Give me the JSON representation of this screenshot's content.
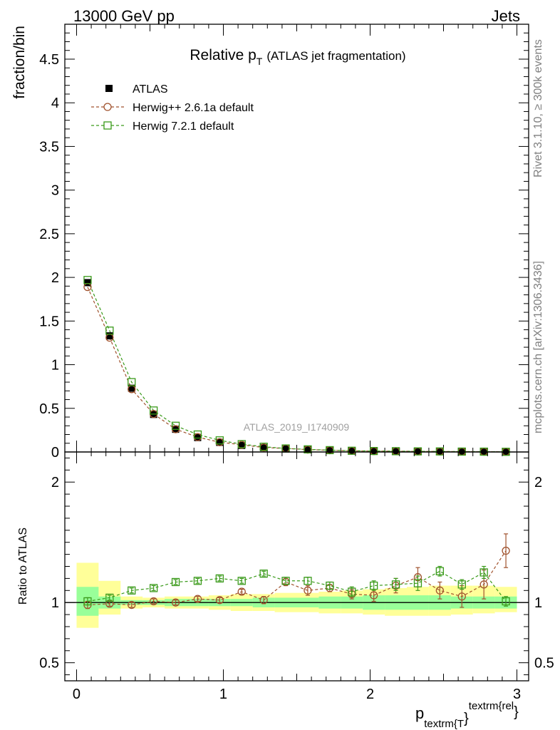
{
  "header": {
    "left": "13000 GeV pp",
    "right": "Jets"
  },
  "side_labels": {
    "rivet": "Rivet 3.1.10, ≥ 300k events",
    "mcplots": "mcplots.cern.ch [arXiv:1306.3436]"
  },
  "colors": {
    "atlas": "#000000",
    "herwig_old": "#a0522d",
    "herwig_new": "#3a9a1a",
    "band_outer": "#ffff99",
    "band_inner": "#99ff99"
  },
  "chart_data": {
    "type": "scatter",
    "title": "Relative p",
    "title_sub": "T",
    "title_suffix": "(ATLAS jet fragmentation)",
    "analysis": "ATLAS_2019_I1740909",
    "ylabel": "fraction/bin",
    "ratio_ylabel": "Ratio to ATLAS",
    "xlabel": {
      "main": "p",
      "sub": "textrm{T",
      "close": "}",
      "sup": "textrm{rel",
      "sup_close": "}"
    },
    "xlim": [
      -0.08,
      3.08
    ],
    "ylim": [
      0,
      4.9
    ],
    "ratio_ylim": [
      0.35,
      2.25
    ],
    "x_ticks": [
      0,
      1,
      2,
      3
    ],
    "x_tick_labels": [
      "0",
      "1",
      "2",
      "3"
    ],
    "y_ticks": [
      0,
      0.5,
      1,
      1.5,
      2,
      2.5,
      3,
      3.5,
      4,
      4.5
    ],
    "y_tick_labels": [
      "0",
      "0.5",
      "1",
      "1.5",
      "2",
      "2.5",
      "3",
      "3.5",
      "4",
      "4.5"
    ],
    "ratio_y_ticks": [
      0.5,
      1,
      2
    ],
    "ratio_y_tick_labels": [
      "0.5",
      "1",
      "2"
    ],
    "bin_edges": [
      0,
      0.15,
      0.3,
      0.45,
      0.6,
      0.75,
      0.9,
      1.05,
      1.2,
      1.35,
      1.5,
      1.65,
      1.8,
      1.95,
      2.1,
      2.25,
      2.4,
      2.55,
      2.7,
      2.85,
      3.0
    ],
    "x": [
      0.075,
      0.225,
      0.375,
      0.525,
      0.675,
      0.825,
      0.975,
      1.125,
      1.275,
      1.425,
      1.575,
      1.725,
      1.875,
      2.025,
      2.175,
      2.325,
      2.475,
      2.625,
      2.775,
      2.925
    ],
    "series": [
      {
        "name": "ATLAS",
        "marker": "filled-square",
        "values": [
          1.94,
          1.33,
          0.73,
          0.43,
          0.26,
          0.165,
          0.11,
          0.075,
          0.05,
          0.035,
          0.025,
          0.018,
          0.013,
          0.01,
          0.008,
          0.006,
          0.005,
          0.004,
          0.003,
          0.002
        ]
      },
      {
        "name": "Herwig++ 2.6.1a default",
        "marker": "open-circle",
        "values": [
          1.89,
          1.31,
          0.72,
          0.435,
          0.261,
          0.17,
          0.112,
          0.082,
          0.051,
          0.041,
          0.027,
          0.02,
          0.013,
          0.01,
          0.009,
          0.0073,
          0.0055,
          0.0042,
          0.0035,
          0.0029
        ],
        "ratio": [
          0.98,
          0.99,
          0.98,
          1.01,
          1.0,
          1.03,
          1.02,
          1.09,
          1.02,
          1.17,
          1.1,
          1.12,
          1.07,
          1.06,
          1.14,
          1.21,
          1.1,
          1.05,
          1.15,
          1.43
        ],
        "ratio_err": [
          0.03,
          0.02,
          0.02,
          0.02,
          0.02,
          0.02,
          0.02,
          0.02,
          0.03,
          0.03,
          0.04,
          0.03,
          0.04,
          0.05,
          0.06,
          0.08,
          0.07,
          0.09,
          0.12,
          0.14
        ]
      },
      {
        "name": "Herwig 7.2.1 default",
        "marker": "open-square",
        "values": [
          1.97,
          1.39,
          0.8,
          0.475,
          0.3,
          0.2,
          0.133,
          0.09,
          0.06,
          0.04,
          0.03,
          0.021,
          0.014,
          0.011,
          0.009,
          0.007,
          0.0063,
          0.0045,
          0.0037,
          0.002
        ],
        "ratio": [
          1.01,
          1.04,
          1.1,
          1.12,
          1.17,
          1.18,
          1.2,
          1.18,
          1.24,
          1.18,
          1.18,
          1.14,
          1.09,
          1.14,
          1.15,
          1.16,
          1.26,
          1.15,
          1.25,
          1.01
        ],
        "ratio_err": [
          0.03,
          0.02,
          0.02,
          0.02,
          0.02,
          0.02,
          0.02,
          0.02,
          0.02,
          0.03,
          0.03,
          0.03,
          0.04,
          0.04,
          0.05,
          0.06,
          0.04,
          0.04,
          0.05,
          0.04
        ]
      }
    ],
    "ratio_band_inner": [
      [
        0.89,
        1.13
      ],
      [
        0.95,
        1.05
      ],
      [
        0.98,
        1.02
      ],
      [
        0.98,
        1.02
      ],
      [
        0.97,
        1.03
      ],
      [
        0.97,
        1.03
      ],
      [
        0.97,
        1.03
      ],
      [
        0.97,
        1.03
      ],
      [
        0.96,
        1.04
      ],
      [
        0.96,
        1.04
      ],
      [
        0.96,
        1.04
      ],
      [
        0.95,
        1.05
      ],
      [
        0.95,
        1.05
      ],
      [
        0.94,
        1.06
      ],
      [
        0.94,
        1.06
      ],
      [
        0.94,
        1.06
      ],
      [
        0.94,
        1.06
      ],
      [
        0.95,
        1.05
      ],
      [
        0.95,
        1.05
      ],
      [
        0.95,
        1.05
      ]
    ],
    "ratio_band_outer": [
      [
        0.79,
        1.33
      ],
      [
        0.9,
        1.18
      ],
      [
        0.95,
        1.05
      ],
      [
        0.96,
        1.04
      ],
      [
        0.95,
        1.05
      ],
      [
        0.95,
        1.05
      ],
      [
        0.94,
        1.06
      ],
      [
        0.93,
        1.07
      ],
      [
        0.93,
        1.07
      ],
      [
        0.92,
        1.08
      ],
      [
        0.92,
        1.08
      ],
      [
        0.91,
        1.09
      ],
      [
        0.91,
        1.1
      ],
      [
        0.9,
        1.11
      ],
      [
        0.89,
        1.12
      ],
      [
        0.89,
        1.13
      ],
      [
        0.89,
        1.14
      ],
      [
        0.9,
        1.14
      ],
      [
        0.91,
        1.14
      ],
      [
        0.92,
        1.13
      ]
    ]
  }
}
